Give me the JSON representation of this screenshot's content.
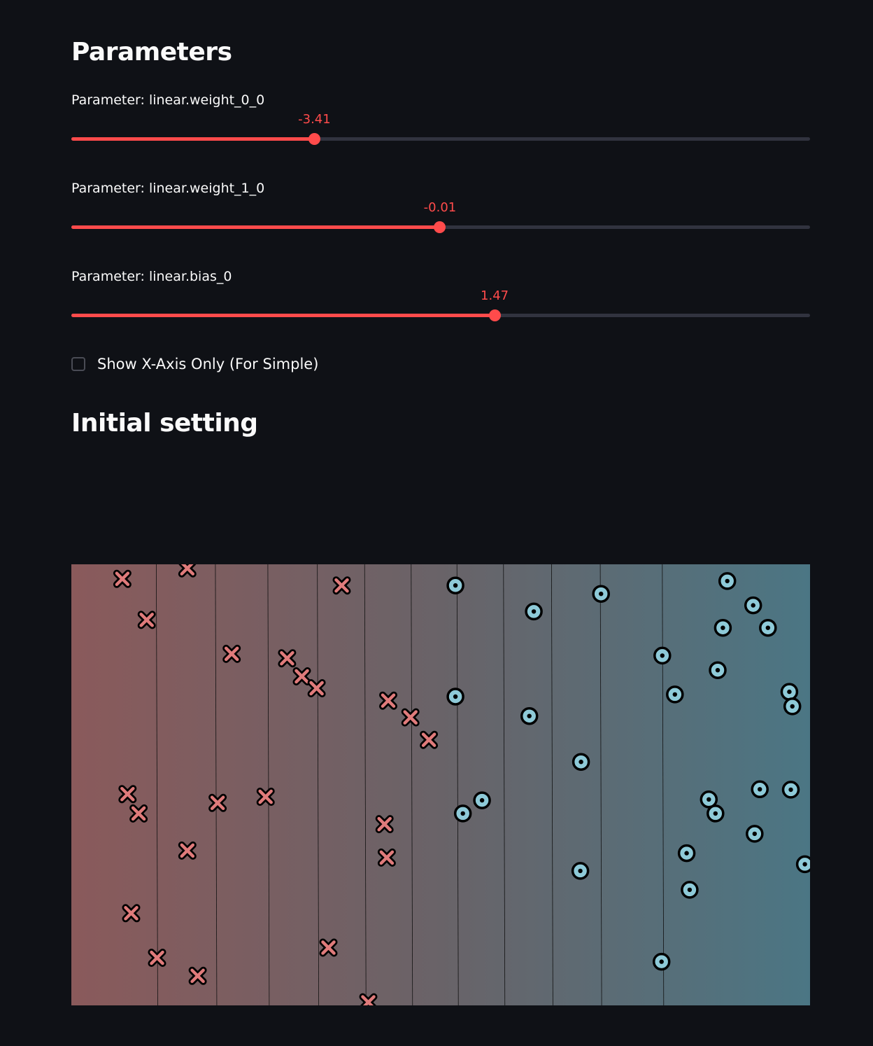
{
  "parameters": {
    "title": "Parameters",
    "sliders": [
      {
        "label": "Parameter: linear.weight_0_0",
        "value": "-3.41",
        "fraction": 0.329
      },
      {
        "label": "Parameter: linear.weight_1_0",
        "value": "-0.01",
        "fraction": 0.499
      },
      {
        "label": "Parameter: linear.bias_0",
        "value": "1.47",
        "fraction": 0.573
      }
    ],
    "checkbox": {
      "label": "Show X-Axis Only (For Simple)",
      "checked": false
    }
  },
  "initial": {
    "title": "Initial setting"
  },
  "colors": {
    "accent": "#ff4b4b",
    "class0_fill": "#e07b7b",
    "class1_fill": "#8ecad8",
    "gradient_left": "#8a5a5b",
    "gradient_mid": "#696368",
    "gradient_right": "#4b7684"
  },
  "chart_data": {
    "type": "scatter",
    "title": "",
    "xlabel": "",
    "ylabel": "",
    "xlim": [
      0,
      1
    ],
    "ylim": [
      0,
      1
    ],
    "grid": false,
    "legend": "none",
    "decision_contours_x": [
      0.115,
      0.195,
      0.266,
      0.333,
      0.397,
      0.46,
      0.522,
      0.585,
      0.65,
      0.716,
      0.8
    ],
    "series": [
      {
        "marker": "x",
        "points": [
          [
            0.069,
            0.967
          ],
          [
            0.157,
            0.991
          ],
          [
            0.102,
            0.874
          ],
          [
            0.217,
            0.797
          ],
          [
            0.366,
            0.952
          ],
          [
            0.292,
            0.787
          ],
          [
            0.312,
            0.746
          ],
          [
            0.332,
            0.719
          ],
          [
            0.429,
            0.691
          ],
          [
            0.459,
            0.653
          ],
          [
            0.484,
            0.602
          ],
          [
            0.076,
            0.479
          ],
          [
            0.091,
            0.435
          ],
          [
            0.198,
            0.459
          ],
          [
            0.263,
            0.473
          ],
          [
            0.424,
            0.411
          ],
          [
            0.427,
            0.335
          ],
          [
            0.157,
            0.351
          ],
          [
            0.081,
            0.209
          ],
          [
            0.116,
            0.108
          ],
          [
            0.171,
            0.067
          ],
          [
            0.348,
            0.131
          ],
          [
            0.402,
            0.007
          ]
        ]
      },
      {
        "marker": "o",
        "points": [
          [
            0.52,
            0.952
          ],
          [
            0.626,
            0.893
          ],
          [
            0.717,
            0.933
          ],
          [
            0.888,
            0.962
          ],
          [
            0.923,
            0.907
          ],
          [
            0.943,
            0.856
          ],
          [
            0.882,
            0.856
          ],
          [
            0.8,
            0.793
          ],
          [
            0.875,
            0.76
          ],
          [
            0.817,
            0.705
          ],
          [
            0.972,
            0.711
          ],
          [
            0.976,
            0.678
          ],
          [
            0.52,
            0.7
          ],
          [
            0.62,
            0.656
          ],
          [
            0.69,
            0.552
          ],
          [
            0.556,
            0.465
          ],
          [
            0.53,
            0.435
          ],
          [
            0.863,
            0.467
          ],
          [
            0.872,
            0.435
          ],
          [
            0.932,
            0.49
          ],
          [
            0.974,
            0.489
          ],
          [
            0.925,
            0.389
          ],
          [
            0.833,
            0.345
          ],
          [
            0.689,
            0.305
          ],
          [
            0.837,
            0.262
          ],
          [
            0.993,
            0.32
          ],
          [
            0.799,
            0.099
          ]
        ]
      }
    ]
  }
}
